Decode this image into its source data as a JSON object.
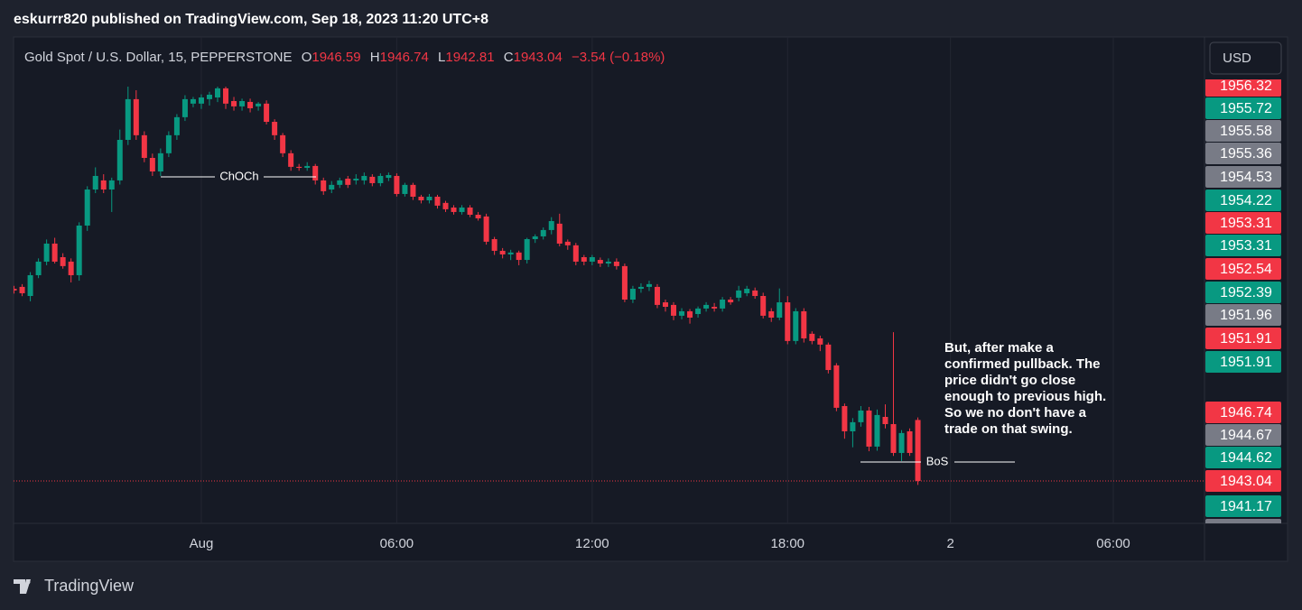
{
  "header": "eskurrr820 published on TradingView.com, Sep 18, 2023 11:20 UTC+8",
  "currency_button": "USD",
  "brand": "TradingView",
  "chart_data": {
    "type": "candlestick",
    "title": "Gold Spot / U.S. Dollar, 15, PEPPERSTONE",
    "ohlc_labels": [
      "O",
      "H",
      "L",
      "C"
    ],
    "change": "−3.54 (−0.18%)",
    "up_color": "#089981",
    "down_color": "#f23645",
    "open": [
      1954.23,
      1954.34,
      1953.81,
      1955.02,
      1955.81,
      1956.86,
      1956.07,
      1955.81,
      1955.02,
      1957.91,
      1960.01,
      1960.54,
      1960.01,
      1960.54,
      1962.9,
      1965.27,
      1963.17,
      1961.85,
      1961.06,
      1962.12,
      1963.17,
      1964.22,
      1965.01,
      1965.01,
      1965.27,
      1965.37,
      1965.9,
      1965.16,
      1964.85,
      1965.11,
      1964.85,
      1965.01,
      1963.95,
      1963.17,
      1962.12,
      1961.33,
      1961.27,
      1961.38,
      1960.54,
      1960.01,
      1960.28,
      1960.64,
      1960.54,
      1960.54,
      1960.75,
      1960.38,
      1960.69,
      1960.8,
      1959.75,
      1960.28,
      1959.59,
      1959.38,
      1959.59,
      1959.23,
      1958.96,
      1958.7,
      1958.96,
      1958.54,
      1958.44,
      1957.12,
      1956.44,
      1956.23,
      1956.34,
      1955.91,
      1957.12,
      1957.28,
      1957.65,
      1958.02,
      1956.97,
      1956.76,
      1956.07,
      1955.81,
      1955.91,
      1955.7,
      1955.81,
      1955.55,
      1953.6,
      1954.23,
      1954.34,
      1954.34,
      1953.44,
      1953.29,
      1952.66,
      1952.92,
      1952.76,
      1953.08,
      1953.18,
      1953.08,
      1953.6,
      1953.71,
      1953.97,
      1954.13,
      1953.81,
      1952.92,
      1952.55,
      1953.44,
      1951.19,
      1952.92,
      1951.61,
      1951.34,
      1950.98,
      1949.77,
      1947.4,
      1945.93,
      1946.46,
      1947.14,
      1945.04,
      1946.77,
      1946.35,
      1944.67,
      1945.93,
      1946.59
    ],
    "high": [
      1954.4,
      1954.5,
      1955.2,
      1956.0,
      1957.1,
      1957.2,
      1956.3,
      1956.0,
      1958.1,
      1960.2,
      1961.3,
      1960.9,
      1960.7,
      1963.5,
      1966.0,
      1965.79,
      1963.4,
      1962.1,
      1962.4,
      1963.4,
      1964.4,
      1965.5,
      1965.4,
      1965.55,
      1965.7,
      1966.0,
      1966.0,
      1965.4,
      1965.3,
      1965.3,
      1965.1,
      1965.2,
      1964.1,
      1963.3,
      1962.3,
      1961.5,
      1961.6,
      1961.5,
      1960.7,
      1960.5,
      1960.7,
      1960.8,
      1960.9,
      1961.0,
      1960.9,
      1960.95,
      1961.0,
      1960.95,
      1960.4,
      1960.4,
      1959.7,
      1959.75,
      1959.7,
      1959.35,
      1959.1,
      1959.1,
      1959.1,
      1958.7,
      1958.6,
      1957.25,
      1956.6,
      1956.5,
      1956.45,
      1957.2,
      1957.4,
      1957.8,
      1958.4,
      1958.6,
      1957.1,
      1956.9,
      1956.2,
      1956.2,
      1956.05,
      1956.0,
      1956.0,
      1955.7,
      1954.4,
      1954.55,
      1954.7,
      1954.5,
      1953.6,
      1953.45,
      1953.1,
      1953.05,
      1953.2,
      1953.45,
      1953.4,
      1953.75,
      1953.75,
      1954.4,
      1954.4,
      1954.3,
      1954.0,
      1953.1,
      1954.25,
      1953.8,
      1953.1,
      1953.1,
      1951.75,
      1951.5,
      1951.1,
      1949.9,
      1947.55,
      1946.7,
      1947.4,
      1947.35,
      1947.2,
      1947.5,
      1951.7,
      1946.0,
      1946.1,
      1946.74
    ],
    "low": [
      1953.95,
      1953.8,
      1953.5,
      1954.85,
      1955.6,
      1955.7,
      1955.4,
      1954.6,
      1954.7,
      1957.6,
      1959.8,
      1959.8,
      1958.7,
      1960.3,
      1962.6,
      1962.9,
      1961.6,
      1960.8,
      1960.8,
      1961.9,
      1962.9,
      1964.0,
      1964.8,
      1964.7,
      1964.9,
      1965.1,
      1964.7,
      1964.6,
      1964.6,
      1964.5,
      1964.6,
      1963.8,
      1962.9,
      1961.9,
      1961.1,
      1961.1,
      1961.1,
      1960.3,
      1959.7,
      1959.8,
      1960.1,
      1960.1,
      1960.3,
      1960.3,
      1960.2,
      1960.2,
      1960.5,
      1959.6,
      1959.6,
      1959.4,
      1959.2,
      1959.2,
      1958.9,
      1958.7,
      1958.55,
      1958.55,
      1958.4,
      1958.2,
      1956.8,
      1956.2,
      1956.0,
      1955.9,
      1955.6,
      1955.7,
      1956.9,
      1957.1,
      1957.4,
      1956.7,
      1956.5,
      1955.6,
      1955.6,
      1955.6,
      1955.5,
      1955.5,
      1955.35,
      1953.45,
      1953.4,
      1954.0,
      1954.1,
      1953.1,
      1952.9,
      1952.4,
      1952.45,
      1952.2,
      1952.55,
      1952.9,
      1952.9,
      1952.9,
      1953.3,
      1953.5,
      1953.8,
      1953.65,
      1952.5,
      1952.3,
      1952.4,
      1951.0,
      1951.0,
      1951.1,
      1951.0,
      1950.6,
      1949.3,
      1947.1,
      1945.5,
      1945.0,
      1946.2,
      1944.77,
      1944.8,
      1946.1,
      1944.5,
      1944.2,
      1944.5,
      1942.81
    ],
    "close": [
      1954.13,
      1953.97,
      1955.02,
      1955.81,
      1956.86,
      1955.81,
      1955.55,
      1955.02,
      1957.91,
      1960.01,
      1960.8,
      1960.01,
      1960.54,
      1962.9,
      1965.27,
      1963.17,
      1961.85,
      1961.06,
      1962.12,
      1963.17,
      1964.22,
      1965.27,
      1965.27,
      1965.37,
      1965.53,
      1965.9,
      1965.01,
      1964.85,
      1965.16,
      1964.74,
      1965.01,
      1963.95,
      1963.17,
      1962.12,
      1961.33,
      1961.27,
      1961.38,
      1960.54,
      1959.91,
      1960.28,
      1960.54,
      1960.28,
      1960.64,
      1960.8,
      1960.38,
      1960.8,
      1960.85,
      1959.75,
      1960.28,
      1959.59,
      1959.38,
      1959.59,
      1959.07,
      1958.86,
      1958.7,
      1958.96,
      1958.54,
      1958.33,
      1956.97,
      1956.44,
      1956.23,
      1956.34,
      1955.91,
      1957.12,
      1957.28,
      1957.65,
      1958.17,
      1956.86,
      1956.76,
      1955.81,
      1955.81,
      1956.07,
      1955.7,
      1955.81,
      1955.55,
      1953.6,
      1954.23,
      1954.34,
      1954.5,
      1953.29,
      1953.18,
      1952.66,
      1952.92,
      1952.55,
      1953.08,
      1953.29,
      1953.08,
      1953.6,
      1953.44,
      1954.13,
      1954.23,
      1953.81,
      1952.66,
      1952.55,
      1953.44,
      1951.19,
      1952.92,
      1951.34,
      1951.19,
      1950.98,
      1949.5,
      1947.3,
      1945.93,
      1946.46,
      1947.14,
      1945.04,
      1946.88,
      1946.35,
      1944.67,
      1945.83,
      1944.67,
      1943.04
    ],
    "xlim": [
      -0.06,
      146.2
    ],
    "xticks": [
      {
        "value": 23,
        "label": "Aug"
      },
      {
        "value": 47,
        "label": "06:00"
      },
      {
        "value": 71,
        "label": "12:00"
      },
      {
        "value": 95,
        "label": "18:00"
      },
      {
        "value": 115,
        "label": "2"
      },
      {
        "value": 135,
        "label": "06:00"
      }
    ],
    "ylim": [
      1940.57,
      1968.89
    ],
    "price_labels": [
      {
        "value": 1956.32,
        "color": "#f23645"
      },
      {
        "value": 1955.72,
        "color": "#089981"
      },
      {
        "value": 1955.58,
        "color": "#787b86"
      },
      {
        "value": 1955.36,
        "color": "#787b86"
      },
      {
        "value": 1954.53,
        "color": "#787b86"
      },
      {
        "value": 1954.22,
        "color": "#089981"
      },
      {
        "value": 1953.31,
        "color": "#f23645"
      },
      {
        "value": 1953.31,
        "color": "#089981"
      },
      {
        "value": 1952.54,
        "color": "#f23645"
      },
      {
        "value": 1952.39,
        "color": "#089981"
      },
      {
        "value": 1951.96,
        "color": "#787b86"
      },
      {
        "value": 1951.91,
        "color": "#f23645"
      },
      {
        "value": 1951.91,
        "color": "#089981"
      },
      {
        "value": 1946.74,
        "color": "#f23645"
      },
      {
        "value": 1944.67,
        "color": "#787b86"
      },
      {
        "value": 1944.62,
        "color": "#089981"
      },
      {
        "value": 1943.04,
        "color": "#f23645"
      },
      {
        "value": 1941.17,
        "color": "#089981"
      }
    ],
    "annotations": [
      {
        "text": "ChOCh"
      },
      {
        "text": "BoS"
      }
    ],
    "note": [
      "But, after make a",
      "confirmed pullback. The",
      "price didn't go close",
      "enough to previous high.",
      "So we no don't have a",
      "trade on that swing."
    ]
  }
}
